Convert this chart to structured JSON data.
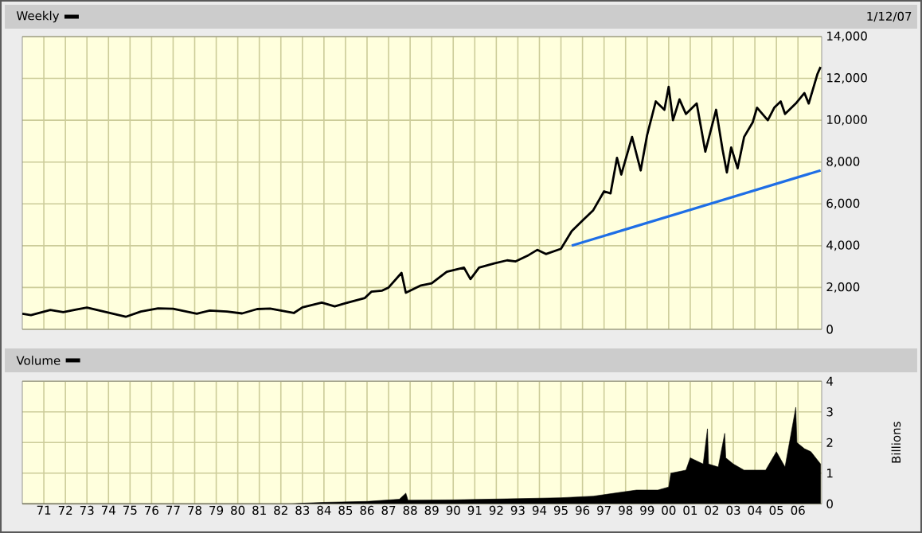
{
  "chart_data": [
    {
      "type": "line",
      "title": "Weekly",
      "subtitle": "1/12/07",
      "grid": true,
      "tick_labels": "y",
      "xlim": [
        1970,
        2007.1
      ],
      "ylim": [
        0,
        14000
      ],
      "xticks": [
        {
          "value": 1971,
          "label": null
        },
        {
          "value": 1972,
          "label": null
        },
        {
          "value": 1973,
          "label": null
        },
        {
          "value": 1974,
          "label": null
        },
        {
          "value": 1975,
          "label": null
        },
        {
          "value": 1976,
          "label": null
        },
        {
          "value": 1977,
          "label": null
        },
        {
          "value": 1978,
          "label": null
        },
        {
          "value": 1979,
          "label": null
        },
        {
          "value": 1980,
          "label": null
        },
        {
          "value": 1981,
          "label": null
        },
        {
          "value": 1982,
          "label": null
        },
        {
          "value": 1983,
          "label": null
        },
        {
          "value": 1984,
          "label": null
        },
        {
          "value": 1985,
          "label": null
        },
        {
          "value": 1986,
          "label": null
        },
        {
          "value": 1987,
          "label": null
        },
        {
          "value": 1988,
          "label": null
        },
        {
          "value": 1989,
          "label": null
        },
        {
          "value": 1990,
          "label": null
        },
        {
          "value": 1991,
          "label": null
        },
        {
          "value": 1992,
          "label": null
        },
        {
          "value": 1993,
          "label": null
        },
        {
          "value": 1994,
          "label": null
        },
        {
          "value": 1995,
          "label": null
        },
        {
          "value": 1996,
          "label": null
        },
        {
          "value": 1997,
          "label": null
        },
        {
          "value": 1998,
          "label": null
        },
        {
          "value": 1999,
          "label": null
        },
        {
          "value": 2000,
          "label": null
        },
        {
          "value": 2001,
          "label": null
        },
        {
          "value": 2002,
          "label": null
        },
        {
          "value": 2003,
          "label": null
        },
        {
          "value": 2004,
          "label": null
        },
        {
          "value": 2005,
          "label": null
        },
        {
          "value": 2006,
          "label": null
        }
      ],
      "yticks": [
        0,
        {
          "value": 2000,
          "label": "2,000"
        },
        {
          "value": 4000,
          "label": "4,000"
        },
        {
          "value": 6000,
          "label": "6,000"
        },
        {
          "value": 8000,
          "label": "8,000"
        },
        {
          "value": 10000,
          "label": "10,000"
        },
        {
          "value": 12000,
          "label": "12,000"
        },
        {
          "value": 14000,
          "label": "14,000"
        }
      ],
      "series": [
        {
          "color": "#000000",
          "x": [
            1970.0,
            1970.4,
            1971.3,
            1971.9,
            1972.5,
            1973.0,
            1973.9,
            1974.8,
            1975.5,
            1976.3,
            1977.0,
            1978.1,
            1978.7,
            1979.5,
            1980.2,
            1980.9,
            1981.5,
            1982.6,
            1983.0,
            1983.9,
            1984.5,
            1985.0,
            1985.9,
            1986.2,
            1986.7,
            1987.0,
            1987.6,
            1987.8,
            1988.5,
            1989.0,
            1989.7,
            1990.5,
            1990.8,
            1991.2,
            1991.9,
            1992.5,
            1992.9,
            1993.5,
            1993.9,
            1994.3,
            1995.0,
            1995.5,
            1996.0,
            1996.5,
            1997.0,
            1997.3,
            1997.6,
            1997.8,
            1998.3,
            1998.7,
            1999.0,
            1999.4,
            1999.8,
            2000.0,
            2000.2,
            2000.5,
            2000.8,
            2001.3,
            2001.7,
            2002.2,
            2002.5,
            2002.7,
            2002.9,
            2003.2,
            2003.5,
            2003.9,
            2004.1,
            2004.6,
            2004.9,
            2005.2,
            2005.4,
            2005.9,
            2006.3,
            2006.5,
            2006.9,
            2007.05
          ],
          "values": [
            750,
            680,
            930,
            820,
            950,
            1040,
            820,
            600,
            850,
            1000,
            980,
            750,
            900,
            850,
            760,
            970,
            990,
            780,
            1050,
            1280,
            1100,
            1250,
            1500,
            1800,
            1850,
            2000,
            2700,
            1750,
            2100,
            2200,
            2750,
            2950,
            2400,
            2950,
            3150,
            3300,
            3250,
            3550,
            3800,
            3600,
            3850,
            4700,
            5200,
            5700,
            6600,
            6500,
            8200,
            7400,
            9200,
            7600,
            9300,
            10900,
            10500,
            11600,
            10000,
            11000,
            10300,
            10800,
            8500,
            10500,
            8600,
            7500,
            8700,
            7700,
            9200,
            9900,
            10600,
            10000,
            10600,
            10900,
            10300,
            10800,
            11300,
            10800,
            12200,
            12550
          ]
        },
        {
          "color": "#1e6ee6",
          "x": [
            1995.5,
            2007.05
          ],
          "values": [
            4000,
            7600
          ]
        }
      ]
    },
    {
      "type": "area",
      "title": "Volume",
      "ylabel": "Billions",
      "grid": true,
      "xlim": [
        1970,
        2007.1
      ],
      "ylim": [
        0,
        4
      ],
      "yticks": [
        0,
        1,
        2,
        3,
        4
      ],
      "xticks": [
        {
          "value": 1971,
          "label": "71"
        },
        {
          "value": 1972,
          "label": "72"
        },
        {
          "value": 1973,
          "label": "73"
        },
        {
          "value": 1974,
          "label": "74"
        },
        {
          "value": 1975,
          "label": "75"
        },
        {
          "value": 1976,
          "label": "76"
        },
        {
          "value": 1977,
          "label": "77"
        },
        {
          "value": 1978,
          "label": "78"
        },
        {
          "value": 1979,
          "label": "79"
        },
        {
          "value": 1980,
          "label": "80"
        },
        {
          "value": 1981,
          "label": "81"
        },
        {
          "value": 1982,
          "label": "82"
        },
        {
          "value": 1983,
          "label": "83"
        },
        {
          "value": 1984,
          "label": "84"
        },
        {
          "value": 1985,
          "label": "85"
        },
        {
          "value": 1986,
          "label": "86"
        },
        {
          "value": 1987,
          "label": "87"
        },
        {
          "value": 1988,
          "label": "88"
        },
        {
          "value": 1989,
          "label": "89"
        },
        {
          "value": 1990,
          "label": "90"
        },
        {
          "value": 1991,
          "label": "91"
        },
        {
          "value": 1992,
          "label": "92"
        },
        {
          "value": 1993,
          "label": "93"
        },
        {
          "value": 1994,
          "label": "94"
        },
        {
          "value": 1995,
          "label": "95"
        },
        {
          "value": 1996,
          "label": "96"
        },
        {
          "value": 1997,
          "label": "97"
        },
        {
          "value": 1998,
          "label": "98"
        },
        {
          "value": 1999,
          "label": "99"
        },
        {
          "value": 2000,
          "label": "00"
        },
        {
          "value": 2001,
          "label": "01"
        },
        {
          "value": 2002,
          "label": "02"
        },
        {
          "value": 2003,
          "label": "03"
        },
        {
          "value": 2004,
          "label": "04"
        },
        {
          "value": 2005,
          "label": "05"
        },
        {
          "value": 2006,
          "label": "06"
        }
      ],
      "series": [
        {
          "color": "#000000",
          "x": [
            1970.0,
            1982.5,
            1983.0,
            1984.0,
            1986.0,
            1987.5,
            1987.8,
            1987.9,
            1990.0,
            1993.0,
            1995.0,
            1996.5,
            1997.5,
            1998.5,
            1999.5,
            2000.0,
            2000.1,
            2000.8,
            2001.0,
            2001.6,
            2001.8,
            2001.85,
            2002.3,
            2002.6,
            2002.65,
            2003.0,
            2003.5,
            2004.5,
            2005.0,
            2005.4,
            2005.9,
            2005.95,
            2006.3,
            2006.6,
            2007.05
          ],
          "values": [
            0,
            0,
            0.02,
            0.05,
            0.08,
            0.15,
            0.35,
            0.12,
            0.13,
            0.17,
            0.2,
            0.25,
            0.35,
            0.45,
            0.45,
            0.55,
            1.0,
            1.1,
            1.5,
            1.3,
            2.45,
            1.3,
            1.2,
            2.3,
            1.5,
            1.3,
            1.1,
            1.1,
            1.7,
            1.2,
            3.15,
            2.0,
            1.8,
            1.7,
            1.3
          ]
        }
      ]
    }
  ]
}
